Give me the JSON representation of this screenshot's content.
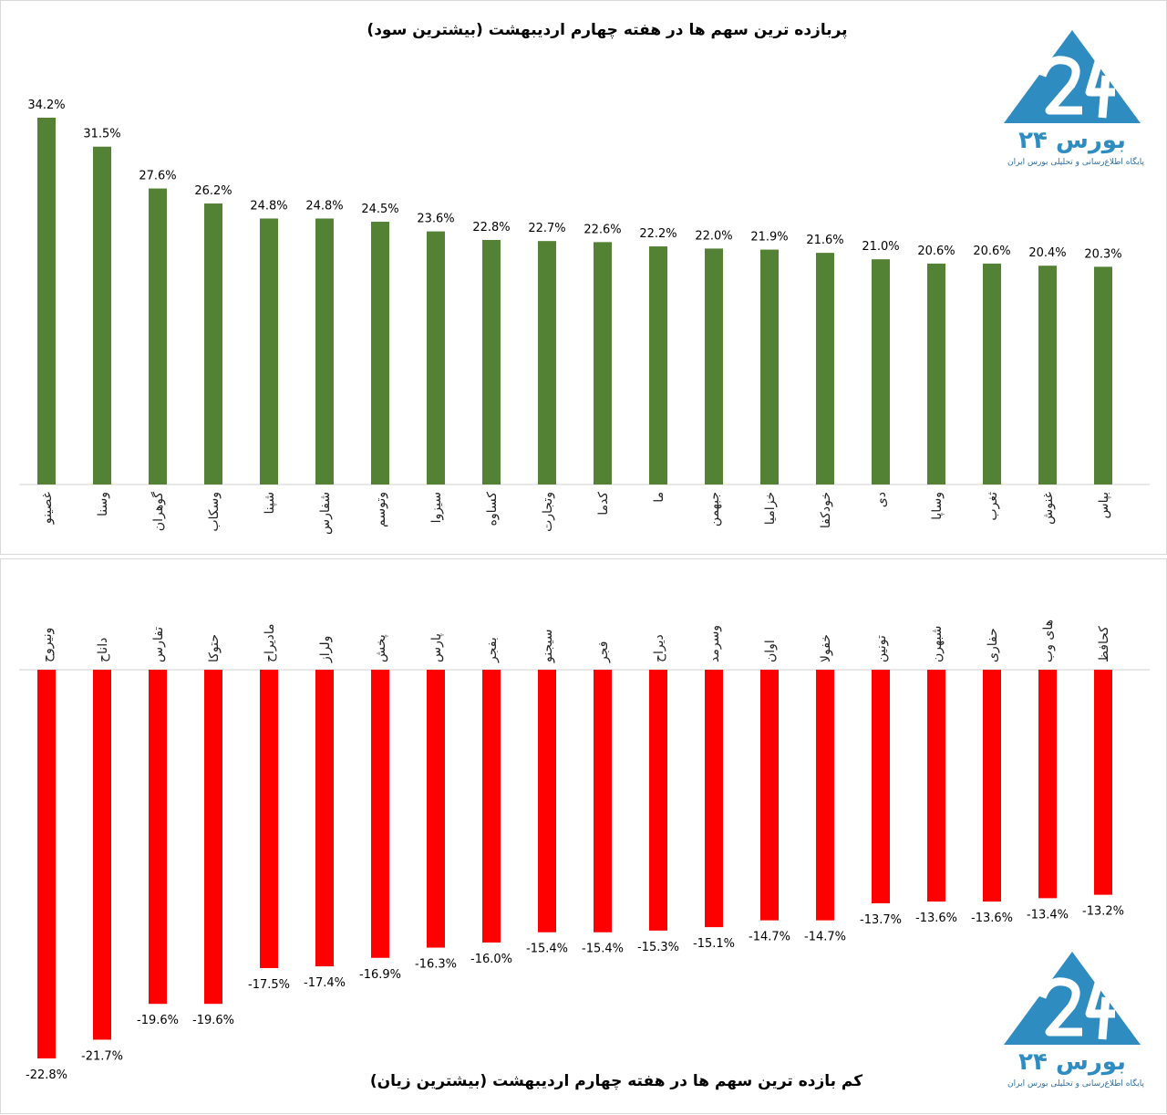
{
  "brand": {
    "name": "بورس ۲۴",
    "tagline": "پایگاه اطلاع‌رسانی و تحلیلی بورس ایران",
    "color": "#2f8cc1"
  },
  "chart_data": [
    {
      "type": "bar",
      "title": "پربازده ترین سهم ها در هفته چهارم اردیبهشت (بیشترین سود)",
      "color": "#548235",
      "ylim": [
        0,
        34.2
      ],
      "categories": [
        "غصینو",
        "وسنا",
        "گوهران",
        "وسکاب",
        "شپنا",
        "شفارس",
        "وتوسم",
        "سیزوا",
        "کساوه",
        "وتجارت",
        "کدما",
        "ما",
        "جبهمن",
        "خزامیا",
        "خودکفا",
        "دی",
        "وساپا",
        "ثغرب",
        "غنوش",
        "بپاس"
      ],
      "values": [
        34.2,
        31.5,
        27.6,
        26.2,
        24.8,
        24.8,
        24.5,
        23.6,
        22.8,
        22.7,
        22.6,
        22.2,
        22.0,
        21.9,
        21.6,
        21.0,
        20.6,
        20.6,
        20.4,
        20.3
      ],
      "labels": [
        "34.2%",
        "31.5%",
        "27.6%",
        "26.2%",
        "24.8%",
        "24.8%",
        "24.5%",
        "23.6%",
        "22.8%",
        "22.7%",
        "22.6%",
        "22.2%",
        "22.0%",
        "21.9%",
        "21.6%",
        "21.0%",
        "20.6%",
        "20.6%",
        "20.4%",
        "20.3%"
      ]
    },
    {
      "type": "bar",
      "title": "کم بازده ترین سهم ها در هفته چهارم اردیبهشت (بیشترین زیان)",
      "color": "#ff0000",
      "ylim": [
        -22.8,
        0
      ],
      "categories": [
        "ونیروح",
        "داناح",
        "تفارس",
        "حتوکا",
        "مادیراح",
        "ولراز",
        "پخش",
        "پارس",
        "بفجر",
        "سیجنو",
        "فجر",
        "دیراح",
        "وسرمد",
        "اوان",
        "خفولا",
        "تونین",
        "شبهرن",
        "حفاری",
        "های وب",
        "کحافظ"
      ],
      "values": [
        -22.8,
        -21.7,
        -19.6,
        -19.6,
        -17.5,
        -17.4,
        -16.9,
        -16.3,
        -16.0,
        -15.4,
        -15.4,
        -15.3,
        -15.1,
        -14.7,
        -14.7,
        -13.7,
        -13.6,
        -13.6,
        -13.4,
        -13.2
      ],
      "labels": [
        "-22.8%",
        "-21.7%",
        "-19.6%",
        "-19.6%",
        "-17.5%",
        "-17.4%",
        "-16.9%",
        "-16.3%",
        "-16.0%",
        "-15.4%",
        "-15.4%",
        "-15.3%",
        "-15.1%",
        "-14.7%",
        "-14.7%",
        "-13.7%",
        "-13.6%",
        "-13.6%",
        "-13.4%",
        "-13.2%"
      ]
    }
  ]
}
